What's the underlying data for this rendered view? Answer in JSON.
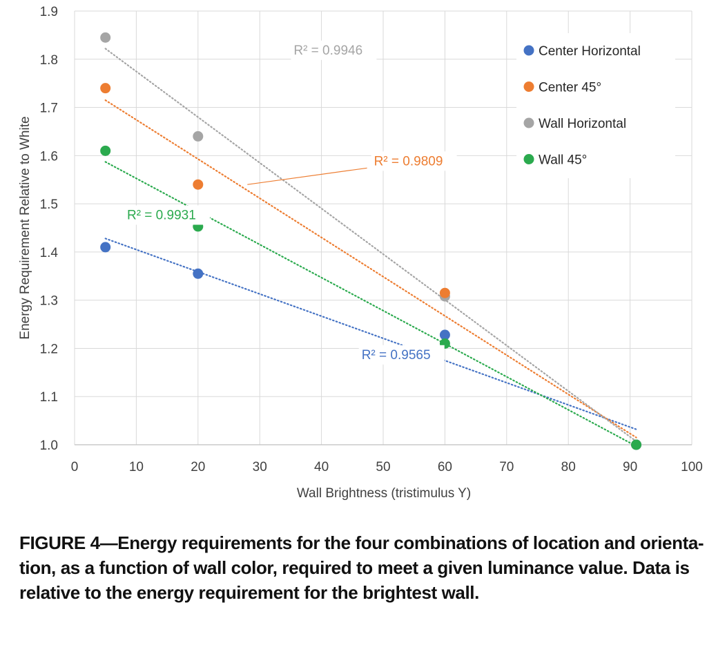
{
  "chart_data": {
    "type": "scatter",
    "xlabel": "Wall Brightness (tristimulus Y)",
    "ylabel": "Energy Requirement Relative to White",
    "xlim": [
      0,
      100
    ],
    "ylim": [
      1.0,
      1.9
    ],
    "x_ticks": [
      "0",
      "10",
      "20",
      "30",
      "40",
      "50",
      "60",
      "70",
      "80",
      "90",
      "100"
    ],
    "y_ticks": [
      "1.0",
      "1.1",
      "1.2",
      "1.3",
      "1.4",
      "1.5",
      "1.6",
      "1.7",
      "1.8",
      "1.9"
    ],
    "grid": true,
    "legend_position": "top-right",
    "series": [
      {
        "name": "Center Horizontal",
        "color": "#4472C4",
        "x": [
          5,
          20,
          60,
          91
        ],
        "y": [
          1.41,
          1.355,
          1.228,
          1.0
        ],
        "trendline": {
          "x": [
            5,
            91
          ],
          "y": [
            1.428,
            1.032
          ]
        },
        "r2_label": "R² = 0.9565"
      },
      {
        "name": "Center 45°",
        "color": "#ED7D31",
        "x": [
          5,
          20,
          60,
          91
        ],
        "y": [
          1.74,
          1.54,
          1.315,
          1.0
        ],
        "trendline": {
          "x": [
            5,
            91
          ],
          "y": [
            1.715,
            1.015
          ]
        },
        "r2_label": "R² = 0.9809"
      },
      {
        "name": "Wall Horizontal",
        "color": "#A5A5A5",
        "x": [
          5,
          20,
          60,
          91
        ],
        "y": [
          1.845,
          1.64,
          1.308,
          1.0
        ],
        "trendline": {
          "x": [
            5,
            91
          ],
          "y": [
            1.822,
            1.007
          ]
        },
        "r2_label": "R² = 0.9946"
      },
      {
        "name": "Wall 45°",
        "color": "#2BAA4E",
        "x": [
          5,
          20,
          60,
          91
        ],
        "y": [
          1.61,
          1.453,
          1.21,
          1.0
        ],
        "trendline": {
          "x": [
            5,
            91
          ],
          "y": [
            1.587,
            0.997
          ]
        },
        "r2_label": "R² = 0.9931"
      }
    ],
    "annotations": [
      {
        "series": 2,
        "text": "R² = 0.9946",
        "color": "#A5A5A5",
        "at_x": 35.5,
        "at_y": 1.81
      },
      {
        "series": 1,
        "text": "R² = 0.9809",
        "color": "#ED7D31",
        "at_x": 48.5,
        "at_y": 1.58,
        "leader_to_x": 28,
        "leader_to_y": 1.54
      },
      {
        "series": 3,
        "text": "R² = 0.9931",
        "color": "#2BAA4E",
        "at_x": 8.5,
        "at_y": 1.468
      },
      {
        "series": 0,
        "text": "R² = 0.9565",
        "color": "#4472C4",
        "at_x": 46.5,
        "at_y": 1.178
      }
    ]
  },
  "caption": {
    "lines": [
      "FIGURE 4—Energy requirements for the four combinations of location and orienta-",
      "tion, as a function of wall color, required to meet a given luminance value. Data is",
      "relative to the energy requirement for the brightest wall."
    ]
  }
}
